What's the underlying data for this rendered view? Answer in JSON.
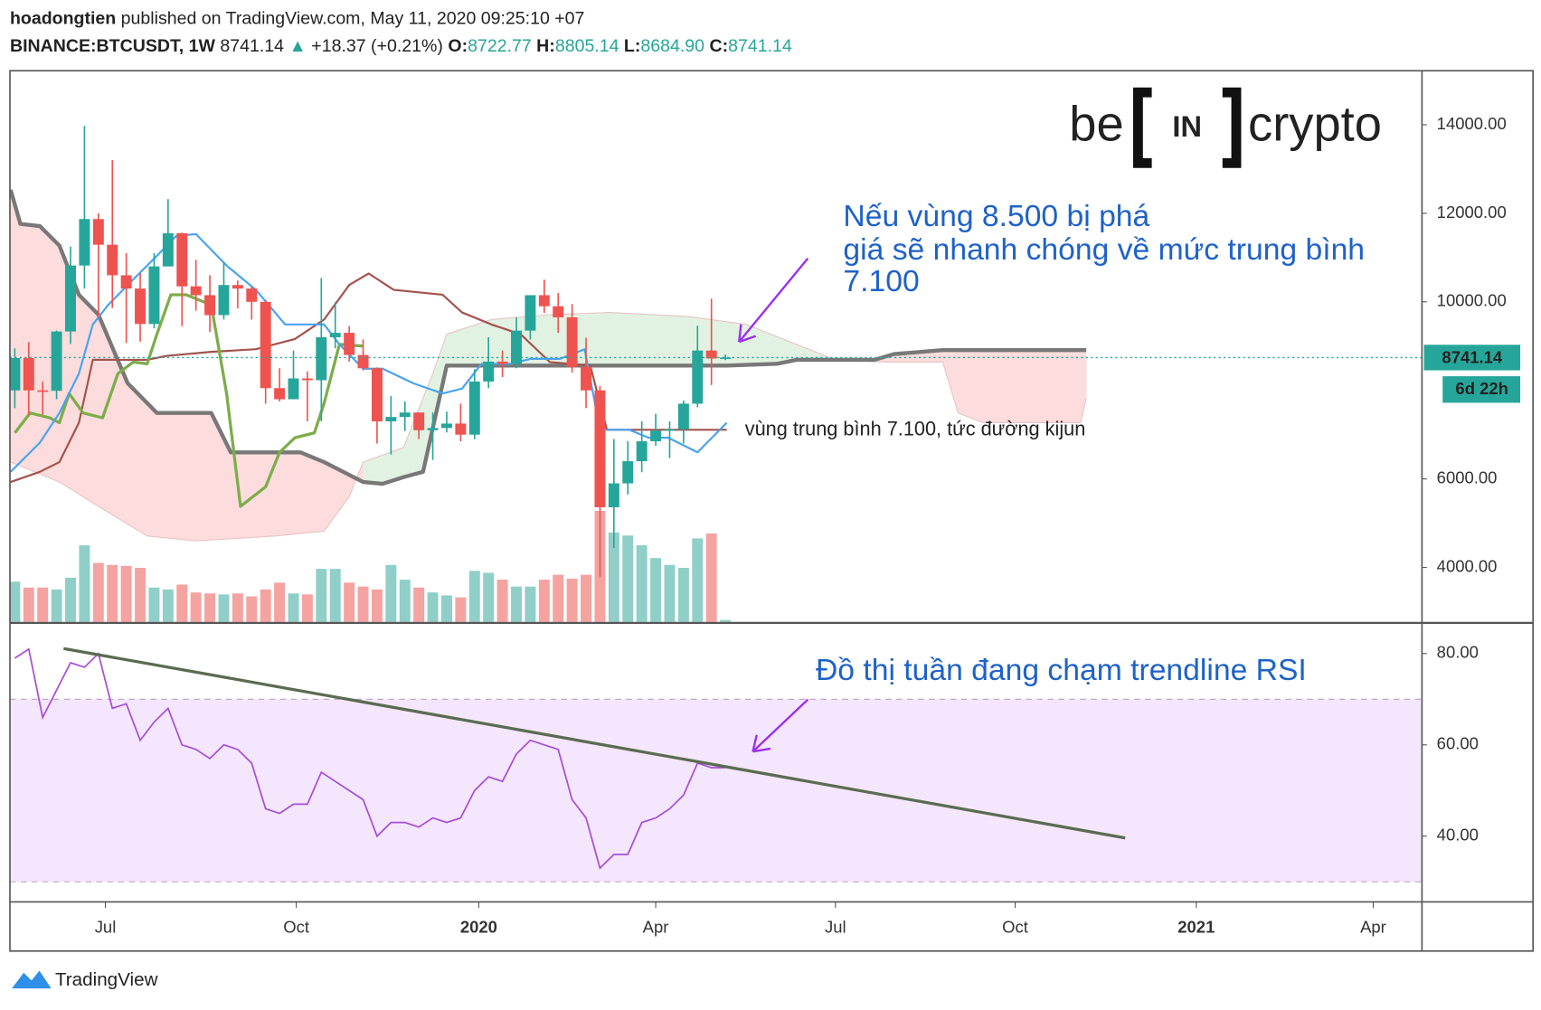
{
  "header": {
    "author": "hoadongtien",
    "published": "published on TradingView.com, May 11, 2020 09:25:10 +07",
    "symbol": "BINANCE:BTCUSDT, 1W",
    "last": "8741.14",
    "arrow": "▲",
    "change": "+18.37 (+0.21%)",
    "ohlc_labels": [
      "O:",
      "H:",
      "L:",
      "C:"
    ],
    "ohlc": [
      "8722.77",
      "8805.14",
      "8684.90",
      "8741.14"
    ]
  },
  "logo": {
    "left": "be",
    "mid": "IN",
    "right": "crypto"
  },
  "annotations": {
    "break_lines": [
      "Nếu vùng 8.500 bị phá",
      "giá sẽ nhanh chóng về mức trung bình",
      "7.100"
    ],
    "kijun": "vùng trung bình 7.100, tức đường kijun",
    "rsi": "Đồ thị tuần đang chạm trendline RSI"
  },
  "footer": "TradingView",
  "chart_data": [
    {
      "type": "candlestick",
      "x": [
        0,
        1,
        2,
        3,
        4,
        5,
        6,
        7,
        8,
        9,
        10,
        11,
        12,
        13,
        14,
        15,
        16,
        17,
        18,
        19,
        20,
        21,
        22,
        23,
        24,
        25,
        26,
        27,
        28,
        29,
        30,
        31,
        32,
        33,
        34,
        35,
        36,
        37,
        38,
        39,
        40,
        41,
        42,
        43,
        44,
        45,
        46,
        47,
        48,
        49,
        50,
        51
      ],
      "open": [
        8000,
        8730,
        8000,
        7990,
        9330,
        10820,
        11870,
        11290,
        10600,
        10300,
        9500,
        10800,
        11550,
        10350,
        10150,
        9700,
        10380,
        10300,
        10000,
        8050,
        7800,
        8270,
        8230,
        9200,
        9300,
        8800,
        8500,
        7300,
        7400,
        7500,
        7100,
        7150,
        7250,
        7000,
        8200,
        8650,
        8600,
        9350,
        10150,
        9900,
        9650,
        8530,
        8000,
        5360,
        5900,
        6400,
        6850,
        7090,
        7120,
        7700,
        8900,
        8722.77
      ],
      "high": [
        8950,
        9090,
        8200,
        9350,
        11250,
        13970,
        12000,
        13200,
        11100,
        10650,
        11100,
        12320,
        11560,
        10950,
        10600,
        10900,
        10480,
        10350,
        10050,
        8500,
        8900,
        8430,
        10540,
        9990,
        9450,
        9150,
        8520,
        7870,
        7750,
        7500,
        7500,
        7520,
        7700,
        8480,
        9200,
        8900,
        9650,
        10150,
        10500,
        10200,
        9950,
        9190,
        8100,
        6900,
        6850,
        7300,
        7470,
        7300,
        7770,
        9460,
        10070,
        8805.14
      ],
      "low": [
        7600,
        7450,
        7450,
        7800,
        9050,
        10300,
        9650,
        9860,
        9070,
        9100,
        9400,
        10800,
        9450,
        9800,
        9320,
        9600,
        9850,
        9600,
        7700,
        7750,
        7800,
        7300,
        7300,
        8950,
        8650,
        8450,
        6800,
        6550,
        7080,
        6900,
        6430,
        7050,
        6850,
        6900,
        8050,
        8300,
        8500,
        9150,
        9750,
        9300,
        8400,
        7600,
        3780,
        4440,
        5650,
        6150,
        6750,
        6470,
        6800,
        7620,
        8120,
        8684.9
      ],
      "close": [
        8730,
        8000,
        7990,
        9330,
        10820,
        11870,
        11290,
        10600,
        10300,
        9500,
        10800,
        11550,
        10350,
        10150,
        9700,
        10380,
        10300,
        10000,
        8050,
        7800,
        8270,
        8230,
        9200,
        9300,
        8800,
        8500,
        7300,
        7400,
        7500,
        7100,
        7150,
        7250,
        7000,
        8200,
        8650,
        8600,
        9350,
        10150,
        9900,
        9650,
        8530,
        8000,
        5360,
        5900,
        6400,
        6850,
        7090,
        7120,
        7700,
        8900,
        8720,
        8741.14
      ],
      "volume": [
        41,
        35,
        35,
        33,
        45,
        78,
        60,
        58,
        57,
        55,
        35,
        33,
        38,
        30,
        29,
        28,
        29,
        26,
        33,
        40,
        29,
        28,
        54,
        54,
        40,
        36,
        33,
        58,
        43,
        35,
        30,
        27,
        25,
        52,
        50,
        43,
        36,
        36,
        43,
        48,
        44,
        48,
        113,
        91,
        88,
        78,
        65,
        58,
        55,
        85,
        90,
        2
      ],
      "volume_ylim": [
        0,
        120
      ],
      "up_color": "#26a69a",
      "down_color": "#ef5350",
      "volume_up_color": "#8fcfc8",
      "volume_down_color": "#f4a3a1",
      "ylim": [
        2770,
        15220
      ],
      "yticks": [
        {
          "value": 4000,
          "label": "4000.00"
        },
        {
          "value": 6000,
          "label": "6000.00"
        },
        {
          "value": 10000,
          "label": "10000.00"
        },
        {
          "value": 12000,
          "label": "12000.00"
        },
        {
          "value": 14000,
          "label": "14000.00"
        }
      ],
      "xlim": [
        -0.35,
        101
      ],
      "countdown": "6d 22h",
      "cloud_colors": {
        "up": "#e2f2e2",
        "down": "#fcdcdc"
      },
      "span_a": {
        "color": "#e8c4c4",
        "x": [
          -0.3,
          3.2,
          6.0,
          9.5,
          13.0,
          18.7,
          22.2,
          24.0,
          25.0,
          27.9,
          30.0,
          31.0,
          34.2,
          38.4,
          42.7,
          48.3,
          52.5,
          56.1,
          58.9,
          62.4,
          66.6,
          67.7,
          69.5,
          76.5,
          76.9
        ],
        "values": [
          6380,
          5930,
          5380,
          4710,
          4600,
          4710,
          4820,
          5600,
          6380,
          6710,
          8380,
          9270,
          9600,
          9710,
          9760,
          9670,
          9490,
          9040,
          8690,
          8640,
          8640,
          7490,
          7270,
          7270,
          7820
        ]
      },
      "span_b": {
        "color": "#787878",
        "x": [
          -0.3,
          0.4,
          1.8,
          3.2,
          4.6,
          6.0,
          8.1,
          10.2,
          14.1,
          15.5,
          20.5,
          22.2,
          25.0,
          26.4,
          27.9,
          29.3,
          31.0,
          41.3,
          51.1,
          54.7,
          56.1,
          61.7,
          63.1,
          66.6,
          76.9
        ],
        "values": [
          12530,
          11760,
          11710,
          11270,
          10160,
          9710,
          8160,
          7490,
          7490,
          6600,
          6600,
          6380,
          5930,
          5890,
          6040,
          6160,
          8560,
          8560,
          8560,
          8600,
          8690,
          8690,
          8820,
          8910,
          8910
        ]
      },
      "kijun": {
        "color": "#a3524c",
        "x": [
          -0.3,
          1.8,
          3.2,
          4.6,
          5.6,
          9.5,
          10.9,
          14.1,
          17.3,
          20.1,
          22.2,
          24.0,
          25.4,
          27.2,
          30.7,
          32.1,
          34.2,
          36.3,
          38.4,
          41.3,
          42.5,
          51.1
        ],
        "values": [
          5930,
          6160,
          6380,
          7270,
          8690,
          8690,
          8780,
          8870,
          8930,
          9160,
          9600,
          10380,
          10640,
          10270,
          10160,
          9760,
          9490,
          9270,
          8640,
          8560,
          7110,
          7110
        ]
      },
      "tenkan": {
        "color": "#4aa3ef",
        "x": [
          -0.3,
          1.8,
          3.2,
          4.6,
          5.6,
          6.7,
          8.1,
          10.2,
          11.6,
          13.0,
          15.2,
          17.3,
          19.4,
          22.2,
          23.3,
          25.0,
          26.4,
          28.6,
          30.7,
          32.1,
          33.5,
          35.6,
          37.0,
          39.1,
          40.9,
          42.0,
          44.1,
          45.5,
          46.9,
          49.0,
          51.1
        ],
        "values": [
          6160,
          6820,
          7490,
          8380,
          9490,
          9930,
          10380,
          11040,
          11490,
          11530,
          10820,
          10270,
          9490,
          9490,
          9040,
          8490,
          8490,
          8160,
          7930,
          8040,
          8600,
          8600,
          8710,
          8710,
          8930,
          7110,
          7110,
          6930,
          6930,
          6600,
          7270
        ]
      },
      "lagging": {
        "color": "#7cad4a",
        "x": [
          0,
          1.1,
          2.5,
          3.2,
          3.9,
          4.9,
          6.3,
          7.4,
          8.5,
          9.5,
          10.2,
          11.2,
          12.3,
          14.1,
          15.2,
          16.2,
          18.0,
          19.0,
          20.1,
          21.5,
          22.2,
          23.3,
          25.0
        ],
        "values": [
          7040,
          7490,
          7380,
          7270,
          7930,
          7490,
          7380,
          8380,
          8640,
          8600,
          9270,
          10160,
          10160,
          9930,
          7930,
          5380,
          5820,
          6600,
          6930,
          7040,
          7710,
          9040,
          9000
        ]
      }
    },
    {
      "type": "line",
      "x": [
        0,
        1,
        2,
        3,
        4,
        5,
        6,
        7,
        8,
        9,
        10,
        11,
        12,
        13,
        14,
        15,
        16,
        17,
        18,
        19,
        20,
        21,
        22,
        23,
        24,
        25,
        26,
        27,
        28,
        29,
        30,
        31,
        32,
        33,
        34,
        35,
        36,
        37,
        38,
        39,
        40,
        41,
        42,
        43,
        44,
        45,
        46,
        47,
        48,
        49,
        50,
        51
      ],
      "values": [
        79,
        81,
        66,
        72,
        78,
        77,
        80,
        68,
        69,
        61,
        65,
        68,
        60,
        59,
        57,
        60,
        59,
        56,
        46,
        45,
        47,
        47,
        54,
        52,
        50,
        48,
        40,
        43,
        43,
        42,
        44,
        43,
        44,
        50,
        53,
        52,
        58,
        61,
        60,
        59,
        48,
        44,
        33,
        36,
        36,
        43,
        44,
        46,
        49,
        56,
        55,
        55
      ],
      "color": "#a64fd8",
      "band_color": "#f4e6fd",
      "bands": [
        30,
        70
      ],
      "trendline": {
        "color": "#5b6b50",
        "x": [
          3.5,
          79.7
        ],
        "values": [
          81.1,
          39.6
        ]
      },
      "ylim": [
        25.6,
        86.5
      ],
      "yticks": [
        {
          "value": 40,
          "label": "40.00"
        },
        {
          "value": 60,
          "label": "60.00"
        },
        {
          "value": 80,
          "label": "80.00"
        }
      ],
      "xlim": [
        -0.35,
        101
      ],
      "xticks": [
        {
          "value": 6.5,
          "label": "Jul"
        },
        {
          "value": 20.2,
          "label": "Oct"
        },
        {
          "value": 33.3,
          "label": "2020"
        },
        {
          "value": 46.0,
          "label": "Apr"
        },
        {
          "value": 58.9,
          "label": "Jul"
        },
        {
          "value": 71.8,
          "label": "Oct"
        },
        {
          "value": 84.8,
          "label": "2021"
        },
        {
          "value": 97.5,
          "label": "Apr"
        }
      ]
    }
  ]
}
